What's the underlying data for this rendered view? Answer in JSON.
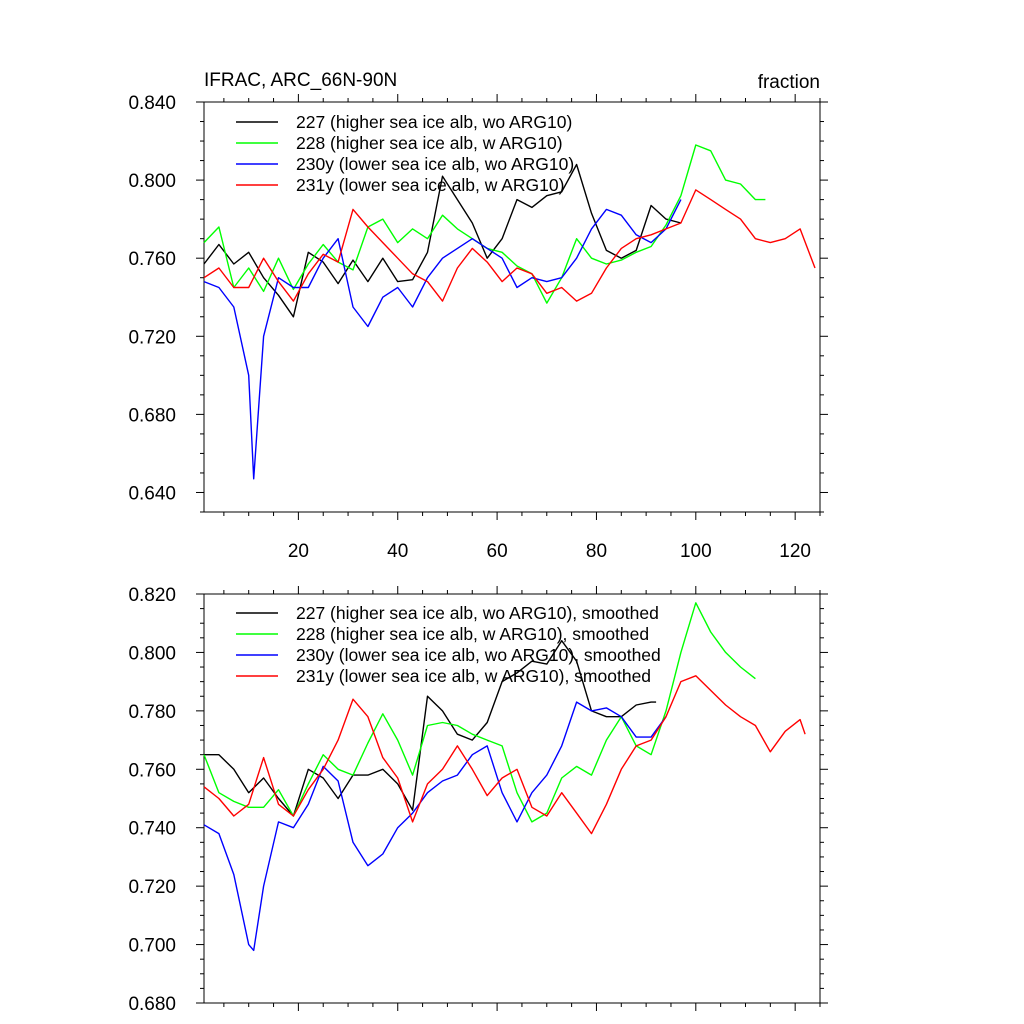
{
  "chart_data": [
    {
      "type": "line",
      "title": "IFRAC, ARC_66N-90N",
      "units": "fraction",
      "xlabel": "",
      "ylabel": "",
      "xlim": [
        1,
        125
      ],
      "ylim": [
        0.63,
        0.84
      ],
      "x_ticks": [
        20,
        40,
        60,
        80,
        100,
        120
      ],
      "y_ticks": [
        "0.640",
        "0.680",
        "0.720",
        "0.760",
        "0.800",
        "0.840"
      ],
      "legend_position": "top-left",
      "series": [
        {
          "name": "227 (higher sea ice alb, wo ARG10)",
          "color": "#000000",
          "x": [
            1,
            4,
            7,
            10,
            13,
            16,
            19,
            22,
            25,
            28,
            31,
            34,
            37,
            40,
            43,
            46,
            49,
            52,
            55,
            58,
            61,
            64,
            67,
            70,
            73,
            76,
            79,
            82,
            85,
            88,
            91,
            94,
            97
          ],
          "values": [
            0.757,
            0.767,
            0.757,
            0.763,
            0.75,
            0.741,
            0.73,
            0.763,
            0.758,
            0.747,
            0.759,
            0.748,
            0.76,
            0.748,
            0.749,
            0.763,
            0.802,
            0.79,
            0.778,
            0.76,
            0.77,
            0.79,
            0.786,
            0.792,
            0.794,
            0.808,
            0.783,
            0.764,
            0.76,
            0.764,
            0.787,
            0.78,
            0.778
          ]
        },
        {
          "name": "228 (higher sea ice alb, w ARG10)",
          "color": "#00ff00",
          "x": [
            1,
            4,
            7,
            10,
            13,
            16,
            19,
            22,
            25,
            28,
            31,
            34,
            37,
            40,
            43,
            46,
            49,
            52,
            55,
            58,
            61,
            64,
            67,
            70,
            73,
            76,
            79,
            82,
            85,
            88,
            91,
            94,
            97,
            100,
            103,
            106,
            109,
            112,
            114
          ],
          "values": [
            0.768,
            0.776,
            0.745,
            0.755,
            0.743,
            0.76,
            0.744,
            0.757,
            0.767,
            0.758,
            0.754,
            0.776,
            0.78,
            0.768,
            0.775,
            0.77,
            0.782,
            0.775,
            0.77,
            0.765,
            0.763,
            0.756,
            0.752,
            0.737,
            0.75,
            0.77,
            0.76,
            0.757,
            0.759,
            0.763,
            0.766,
            0.777,
            0.792,
            0.818,
            0.815,
            0.8,
            0.798,
            0.79,
            0.79
          ]
        },
        {
          "name": "230y (lower sea ice alb, wo ARG10)",
          "color": "#0000ff",
          "x": [
            1,
            4,
            7,
            10,
            11,
            13,
            16,
            19,
            22,
            25,
            28,
            31,
            34,
            37,
            40,
            43,
            46,
            49,
            52,
            55,
            58,
            61,
            64,
            67,
            70,
            73,
            76,
            79,
            82,
            85,
            88,
            91,
            94,
            97
          ],
          "values": [
            0.748,
            0.745,
            0.735,
            0.7,
            0.647,
            0.72,
            0.75,
            0.745,
            0.745,
            0.76,
            0.77,
            0.735,
            0.725,
            0.74,
            0.745,
            0.735,
            0.75,
            0.76,
            0.765,
            0.77,
            0.765,
            0.76,
            0.745,
            0.75,
            0.748,
            0.75,
            0.76,
            0.775,
            0.785,
            0.782,
            0.772,
            0.768,
            0.775,
            0.79
          ]
        },
        {
          "name": "231y (lower sea ice alb, w ARG10)",
          "color": "#ff0000",
          "x": [
            1,
            4,
            7,
            10,
            13,
            16,
            19,
            22,
            25,
            28,
            31,
            34,
            37,
            40,
            43,
            46,
            49,
            52,
            55,
            58,
            61,
            64,
            67,
            70,
            73,
            76,
            79,
            82,
            85,
            88,
            91,
            94,
            97,
            100,
            103,
            106,
            109,
            112,
            115,
            118,
            121,
            124
          ],
          "values": [
            0.75,
            0.755,
            0.745,
            0.745,
            0.76,
            0.748,
            0.738,
            0.752,
            0.762,
            0.758,
            0.785,
            0.776,
            0.768,
            0.76,
            0.752,
            0.748,
            0.738,
            0.755,
            0.765,
            0.758,
            0.748,
            0.755,
            0.752,
            0.742,
            0.745,
            0.738,
            0.742,
            0.755,
            0.765,
            0.77,
            0.772,
            0.775,
            0.778,
            0.795,
            0.79,
            0.785,
            0.78,
            0.77,
            0.768,
            0.77,
            0.775,
            0.755
          ]
        }
      ]
    },
    {
      "type": "line",
      "title": "",
      "xlabel": "",
      "ylabel": "",
      "xlim": [
        1,
        125
      ],
      "ylim": [
        0.68,
        0.82
      ],
      "x_ticks": [
        20,
        40,
        60,
        80,
        100,
        120
      ],
      "y_ticks": [
        "0.680",
        "0.700",
        "0.720",
        "0.740",
        "0.760",
        "0.780",
        "0.800",
        "0.820"
      ],
      "legend_position": "top-left",
      "series": [
        {
          "name": "227 (higher sea ice alb, wo ARG10), smoothed",
          "color": "#000000",
          "x": [
            1,
            4,
            7,
            10,
            13,
            16,
            19,
            22,
            25,
            28,
            31,
            34,
            37,
            40,
            43,
            46,
            49,
            52,
            55,
            58,
            61,
            64,
            67,
            70,
            73,
            76,
            79,
            82,
            85,
            88,
            91,
            92
          ],
          "values": [
            0.765,
            0.765,
            0.76,
            0.752,
            0.757,
            0.75,
            0.744,
            0.76,
            0.757,
            0.75,
            0.758,
            0.758,
            0.76,
            0.755,
            0.746,
            0.785,
            0.78,
            0.772,
            0.77,
            0.776,
            0.79,
            0.793,
            0.797,
            0.796,
            0.804,
            0.797,
            0.78,
            0.778,
            0.778,
            0.782,
            0.783,
            0.783
          ]
        },
        {
          "name": "228 (higher sea ice alb, w ARG10), smoothed",
          "color": "#00ff00",
          "x": [
            1,
            4,
            7,
            10,
            13,
            16,
            19,
            22,
            25,
            28,
            31,
            34,
            37,
            40,
            43,
            46,
            49,
            52,
            55,
            58,
            61,
            64,
            67,
            70,
            73,
            76,
            79,
            82,
            85,
            88,
            91,
            94,
            97,
            100,
            103,
            106,
            109,
            112
          ],
          "values": [
            0.765,
            0.752,
            0.749,
            0.747,
            0.747,
            0.753,
            0.744,
            0.755,
            0.765,
            0.76,
            0.758,
            0.769,
            0.779,
            0.77,
            0.758,
            0.775,
            0.776,
            0.775,
            0.772,
            0.77,
            0.768,
            0.752,
            0.742,
            0.745,
            0.757,
            0.761,
            0.758,
            0.77,
            0.778,
            0.768,
            0.765,
            0.78,
            0.8,
            0.817,
            0.807,
            0.8,
            0.795,
            0.791
          ]
        },
        {
          "name": "230y (lower sea ice alb, wo ARG10), smoothed",
          "color": "#0000ff",
          "x": [
            1,
            4,
            7,
            10,
            11,
            13,
            16,
            19,
            22,
            25,
            28,
            31,
            34,
            37,
            40,
            43,
            46,
            49,
            52,
            55,
            58,
            61,
            64,
            67,
            70,
            73,
            76,
            79,
            82,
            85,
            88,
            91,
            94
          ],
          "values": [
            0.741,
            0.738,
            0.724,
            0.7,
            0.698,
            0.72,
            0.742,
            0.74,
            0.748,
            0.761,
            0.756,
            0.735,
            0.727,
            0.731,
            0.74,
            0.745,
            0.752,
            0.756,
            0.758,
            0.765,
            0.768,
            0.752,
            0.742,
            0.752,
            0.758,
            0.768,
            0.783,
            0.78,
            0.781,
            0.778,
            0.771,
            0.771,
            0.778
          ]
        },
        {
          "name": "231y (lower sea ice alb, w ARG10), smoothed",
          "color": "#ff0000",
          "x": [
            1,
            4,
            7,
            10,
            13,
            16,
            19,
            22,
            25,
            28,
            31,
            34,
            37,
            40,
            43,
            46,
            49,
            52,
            55,
            58,
            61,
            64,
            67,
            70,
            73,
            76,
            79,
            82,
            85,
            88,
            91,
            94,
            97,
            100,
            103,
            106,
            109,
            112,
            115,
            118,
            121,
            122
          ],
          "values": [
            0.754,
            0.75,
            0.744,
            0.748,
            0.764,
            0.748,
            0.744,
            0.753,
            0.76,
            0.77,
            0.784,
            0.778,
            0.764,
            0.757,
            0.742,
            0.755,
            0.76,
            0.768,
            0.76,
            0.751,
            0.757,
            0.76,
            0.747,
            0.744,
            0.752,
            0.745,
            0.738,
            0.748,
            0.76,
            0.768,
            0.77,
            0.778,
            0.79,
            0.792,
            0.787,
            0.782,
            0.778,
            0.775,
            0.766,
            0.773,
            0.777,
            0.772
          ]
        }
      ]
    }
  ]
}
